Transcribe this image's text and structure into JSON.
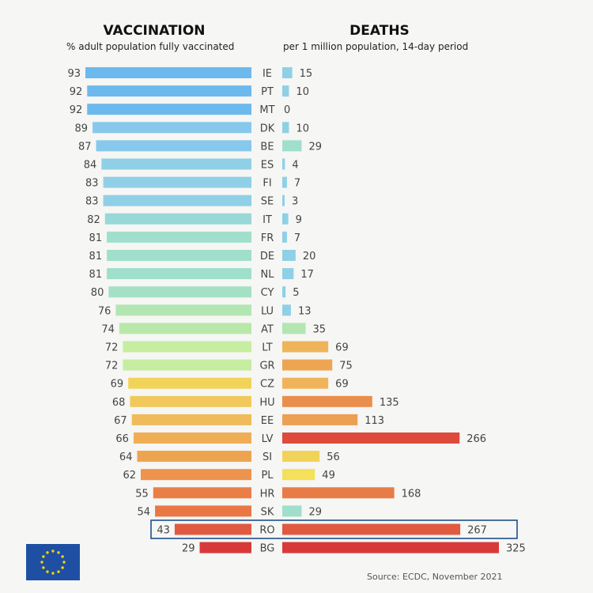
{
  "left_panel": {
    "title": "VACCINATION",
    "subtitle": "% adult population fully vaccinated"
  },
  "right_panel": {
    "title": "DEATHS",
    "subtitle": "per 1 million population, 14-day period"
  },
  "source": "Source: ECDC, November 2021",
  "logo": "EU flag",
  "highlighted_country": "RO",
  "chart_data": [
    {
      "type": "bar",
      "orientation": "horizontal",
      "title": "VACCINATION",
      "subtitle": "% adult population fully vaccinated",
      "categories": [
        "IE",
        "PT",
        "MT",
        "DK",
        "BE",
        "ES",
        "FI",
        "SE",
        "IT",
        "FR",
        "DE",
        "NL",
        "CY",
        "LU",
        "AT",
        "LT",
        "GR",
        "CZ",
        "HU",
        "EE",
        "LV",
        "SI",
        "PL",
        "HR",
        "SK",
        "RO",
        "BG"
      ],
      "values": [
        93,
        92,
        92,
        89,
        87,
        84,
        83,
        83,
        82,
        81,
        81,
        81,
        80,
        76,
        74,
        72,
        72,
        69,
        68,
        67,
        66,
        64,
        62,
        55,
        54,
        43,
        29
      ],
      "colors": [
        "#6cb9ee",
        "#6cb9ee",
        "#6cb9ee",
        "#86c9ec",
        "#86c9ec",
        "#8fd0e6",
        "#8fd0e6",
        "#8fd0e6",
        "#98d8d8",
        "#9fdfcc",
        "#9fdfcc",
        "#9fdfcc",
        "#a4e1c4",
        "#b3e6b2",
        "#b9e8ab",
        "#c6eda0",
        "#c6eda0",
        "#f2d35a",
        "#f1c95b",
        "#f0bb5a",
        "#efae55",
        "#eda450",
        "#ec934d",
        "#e97f47",
        "#e97844",
        "#e05a40",
        "#d83a3a"
      ]
    },
    {
      "type": "bar",
      "orientation": "horizontal",
      "title": "DEATHS",
      "subtitle": "per 1 million population, 14-day period",
      "categories": [
        "IE",
        "PT",
        "MT",
        "DK",
        "BE",
        "ES",
        "FI",
        "SE",
        "IT",
        "FR",
        "DE",
        "NL",
        "CY",
        "LU",
        "AT",
        "LT",
        "GR",
        "CZ",
        "HU",
        "EE",
        "LV",
        "SI",
        "PL",
        "HR",
        "SK",
        "RO",
        "BG"
      ],
      "values": [
        15,
        10,
        0,
        10,
        29,
        4,
        7,
        3,
        9,
        7,
        20,
        17,
        5,
        13,
        35,
        69,
        75,
        69,
        135,
        113,
        266,
        56,
        49,
        168,
        29,
        267,
        325
      ],
      "colors": [
        "#8fd0e6",
        "#8fd0e6",
        "#8fd0e6",
        "#8fd0e6",
        "#9fdfcc",
        "#8fd0e6",
        "#8fd0e6",
        "#8fd0e6",
        "#8fd0e6",
        "#8fd0e6",
        "#8fd0e6",
        "#8fd0e6",
        "#8fd0e6",
        "#8fd0e6",
        "#b3e6b2",
        "#efb45a",
        "#eea552",
        "#efb45a",
        "#e98e4c",
        "#eca052",
        "#de4a3c",
        "#f2d35a",
        "#f4e05a",
        "#e87c47",
        "#9fdfcc",
        "#e05a40",
        "#d83a3a"
      ]
    }
  ]
}
